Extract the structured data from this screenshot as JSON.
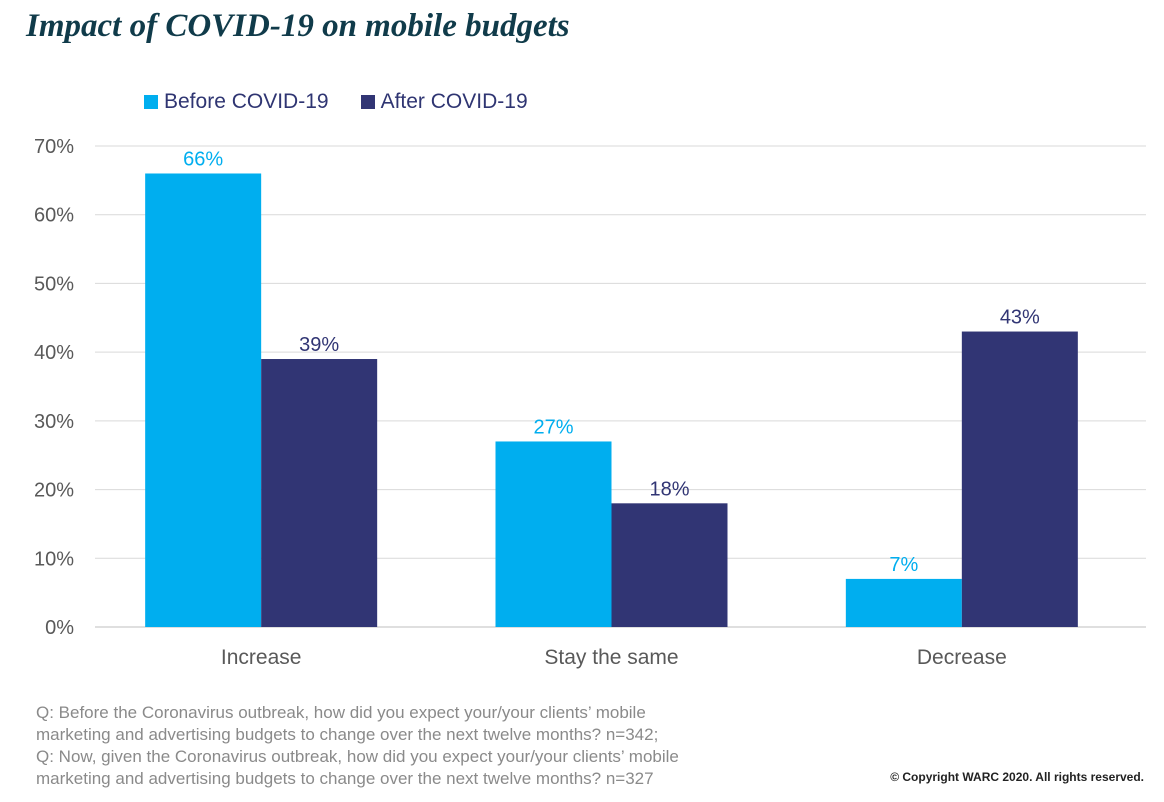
{
  "title": "Impact of COVID-19 on mobile budgets",
  "colors": {
    "before": "#00aeef",
    "after": "#313574",
    "title": "#103b4a",
    "grid": "#d9d9d9",
    "axis_text": "#595959"
  },
  "chart_data": {
    "type": "bar",
    "title": "Impact of COVID-19 on mobile budgets",
    "categories": [
      "Increase",
      "Stay the same",
      "Decrease"
    ],
    "series": [
      {
        "name": "Before COVID-19",
        "values": [
          66,
          27,
          7
        ],
        "labels": [
          "66%",
          "27%",
          "7%"
        ]
      },
      {
        "name": "After COVID-19",
        "values": [
          39,
          18,
          43
        ],
        "labels": [
          "39%",
          "18%",
          "43%"
        ]
      }
    ],
    "ylim": [
      0,
      70
    ],
    "yticks": [
      0,
      10,
      20,
      30,
      40,
      50,
      60,
      70
    ],
    "ytick_labels": [
      "0%",
      "10%",
      "20%",
      "30%",
      "40%",
      "50%",
      "60%",
      "70%"
    ],
    "xlabel": "",
    "ylabel": "",
    "grid": true,
    "legend_position": "top-left"
  },
  "footnote": [
    "Q: Before the Coronavirus outbreak, how did you expect your/your clients’ mobile",
    "marketing and advertising budgets to change over the next twelve months? n=342;",
    "Q: Now, given the Coronavirus outbreak, how did you expect your/your clients’ mobile",
    "marketing and advertising budgets to change over the next twelve months? n=327"
  ],
  "copyright": "© Copyright WARC 2020. All rights reserved."
}
